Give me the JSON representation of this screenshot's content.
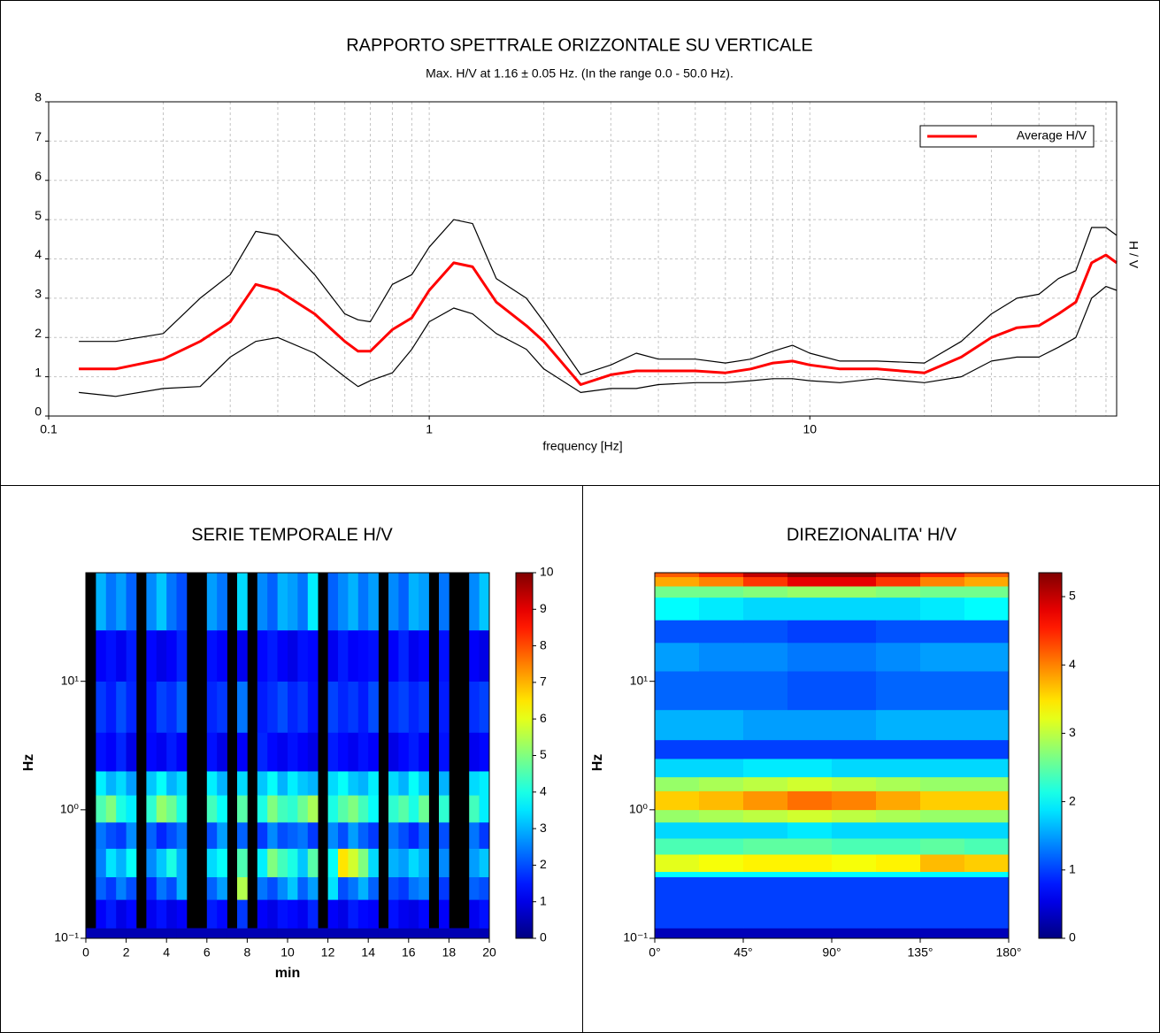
{
  "chart_data": [
    {
      "type": "line",
      "title": "RAPPORTO SPETTRALE ORIZZONTALE SU VERTICALE",
      "subtitle": "Max. H/V at 1.16 ± 0.05 Hz. (In the range 0.0 - 50.0 Hz).",
      "xlabel": "frequency [Hz]",
      "ylabel": "H / V",
      "xlog": true,
      "grid": true,
      "legend": "upper right",
      "xlim": [
        0.1,
        64
      ],
      "xticks": [
        0.1,
        1,
        10
      ],
      "xticks_minor": [
        0.2,
        0.3,
        0.4,
        0.5,
        0.6,
        0.7,
        0.8,
        0.9,
        2,
        3,
        4,
        5,
        6,
        7,
        8,
        9,
        20,
        30,
        40,
        50,
        60
      ],
      "ylim": [
        0,
        8
      ],
      "yticks": [
        0,
        1,
        2,
        3,
        4,
        5,
        6,
        7,
        8
      ],
      "x": [
        0.12,
        0.15,
        0.2,
        0.25,
        0.3,
        0.35,
        0.4,
        0.5,
        0.6,
        0.65,
        0.7,
        0.8,
        0.9,
        1,
        1.16,
        1.3,
        1.5,
        1.8,
        2,
        2.5,
        3,
        3.5,
        4,
        5,
        6,
        7,
        8,
        9,
        10,
        12,
        15,
        20,
        25,
        30,
        35,
        40,
        45,
        50,
        55,
        60,
        64
      ],
      "series": [
        {
          "color": "#000000",
          "values": [
            1.9,
            1.9,
            2.1,
            3.0,
            3.6,
            4.7,
            4.6,
            3.6,
            2.6,
            2.45,
            2.4,
            3.35,
            3.6,
            4.3,
            5.0,
            4.9,
            3.5,
            3.0,
            2.4,
            1.05,
            1.3,
            1.6,
            1.45,
            1.45,
            1.35,
            1.45,
            1.65,
            1.8,
            1.6,
            1.4,
            1.4,
            1.35,
            1.9,
            2.6,
            3.0,
            3.1,
            3.5,
            3.7,
            4.8,
            4.8,
            4.6
          ]
        },
        {
          "color": "#000000",
          "values": [
            0.6,
            0.5,
            0.7,
            0.75,
            1.5,
            1.9,
            2.0,
            1.6,
            1.0,
            0.75,
            0.9,
            1.1,
            1.7,
            2.4,
            2.75,
            2.6,
            2.1,
            1.7,
            1.2,
            0.6,
            0.7,
            0.7,
            0.8,
            0.85,
            0.85,
            0.9,
            0.95,
            0.95,
            0.9,
            0.85,
            0.95,
            0.85,
            1.0,
            1.4,
            1.5,
            1.5,
            1.75,
            2.0,
            3.0,
            3.3,
            3.2
          ]
        },
        {
          "name": "Average H/V",
          "color": "#ff0000",
          "values": [
            1.2,
            1.2,
            1.45,
            1.9,
            2.4,
            3.35,
            3.2,
            2.6,
            1.9,
            1.65,
            1.65,
            2.2,
            2.5,
            3.2,
            3.9,
            3.8,
            2.9,
            2.3,
            1.9,
            0.8,
            1.05,
            1.15,
            1.15,
            1.15,
            1.1,
            1.2,
            1.35,
            1.4,
            1.3,
            1.2,
            1.2,
            1.1,
            1.5,
            2.0,
            2.25,
            2.3,
            2.6,
            2.9,
            3.9,
            4.1,
            3.9
          ]
        }
      ]
    },
    {
      "type": "heatmap",
      "title": "SERIE TEMPORALE H/V",
      "xlabel": "min",
      "ylabel": "Hz",
      "ylog": true,
      "colormap": "jet",
      "xlim": [
        0,
        20
      ],
      "xticks": [
        0,
        2,
        4,
        6,
        8,
        10,
        12,
        14,
        16,
        18,
        20
      ],
      "ylim": [
        0.1,
        70
      ],
      "yticks": [
        {
          "value": 0.1,
          "label": "10⁻¹"
        },
        {
          "value": 1,
          "label": "10⁰"
        },
        {
          "value": 10,
          "label": "10¹"
        }
      ],
      "zlim": [
        0,
        10
      ],
      "zticks": [
        0,
        1,
        2,
        3,
        4,
        5,
        6,
        7,
        8,
        9,
        10
      ],
      "xbins": [
        0,
        0.5,
        1,
        1.5,
        2,
        2.5,
        3,
        3.5,
        4,
        4.5,
        5,
        5.5,
        6,
        6.5,
        7,
        7.5,
        8,
        8.5,
        9,
        9.5,
        10,
        10.5,
        11,
        11.5,
        12,
        12.5,
        13,
        13.5,
        14,
        14.5,
        15,
        15.5,
        16,
        16.5,
        17,
        17.5,
        18,
        18.5,
        19,
        19.5,
        20
      ],
      "ybins": [
        0.1,
        0.12,
        0.2,
        0.3,
        0.5,
        0.8,
        1.3,
        2,
        4,
        10,
        25,
        70
      ],
      "z": [
        [
          0.5,
          0.5,
          0.5,
          0.5,
          0.5,
          0.5,
          0.5,
          0.5,
          0.5,
          0.5,
          0.5,
          0.5,
          0.5,
          0.5,
          0.5,
          0.5,
          0.5,
          0.5,
          0.5,
          0.5,
          0.5,
          0.5,
          0.5,
          0.5,
          0.5,
          0.5,
          0.5,
          0.5,
          0.5,
          0.5,
          0.5,
          0.5,
          0.5,
          0.5,
          0.5,
          0.5,
          0.5,
          0.5,
          0.5,
          0.5
        ],
        [
          null,
          1.2,
          1.5,
          1.0,
          1.3,
          null,
          1.1,
          1.4,
          1.0,
          1.2,
          null,
          null,
          1.5,
          1.3,
          null,
          1.8,
          null,
          1.2,
          1.0,
          1.4,
          1.3,
          1.1,
          1.6,
          null,
          1.2,
          1.0,
          1.5,
          1.3,
          1.2,
          null,
          1.4,
          1.1,
          1.0,
          1.3,
          null,
          1.2,
          null,
          null,
          1.1,
          1.4
        ],
        [
          null,
          2.2,
          1.8,
          2.5,
          2.0,
          null,
          1.6,
          2.4,
          2.0,
          3.0,
          null,
          null,
          2.2,
          2.8,
          null,
          5.5,
          null,
          2.4,
          2.0,
          2.6,
          3.2,
          2.2,
          2.8,
          null,
          3.5,
          2.0,
          2.4,
          3.0,
          2.2,
          null,
          2.0,
          1.8,
          2.4,
          2.6,
          null,
          1.8,
          null,
          null,
          2.2,
          2.0
        ],
        [
          null,
          2.5,
          3.5,
          3.0,
          3.8,
          null,
          2.6,
          3.2,
          4.0,
          3.0,
          null,
          null,
          3.4,
          3.8,
          null,
          4.5,
          null,
          3.6,
          5.0,
          4.4,
          4.0,
          3.2,
          4.6,
          null,
          3.8,
          6.5,
          5.8,
          5.0,
          3.4,
          null,
          3.0,
          2.8,
          3.4,
          3.0,
          null,
          2.6,
          null,
          null,
          2.8,
          3.2
        ],
        [
          null,
          2.4,
          2.0,
          1.8,
          2.6,
          null,
          2.2,
          1.6,
          2.0,
          2.4,
          null,
          null,
          2.0,
          2.8,
          null,
          2.2,
          null,
          1.8,
          2.6,
          2.0,
          2.2,
          2.4,
          1.8,
          null,
          2.6,
          2.0,
          2.8,
          2.2,
          1.8,
          null,
          2.4,
          2.0,
          1.6,
          2.2,
          null,
          2.0,
          null,
          null,
          2.4,
          1.8
        ],
        [
          null,
          4.5,
          5.0,
          4.0,
          3.6,
          null,
          4.2,
          5.2,
          4.8,
          4.0,
          null,
          null,
          4.4,
          3.8,
          null,
          4.6,
          null,
          4.0,
          5.0,
          4.4,
          4.2,
          4.8,
          5.4,
          null,
          4.0,
          4.6,
          5.0,
          4.4,
          3.8,
          null,
          4.2,
          4.6,
          4.0,
          4.8,
          null,
          4.2,
          null,
          null,
          4.4,
          3.6
        ],
        [
          null,
          3.6,
          3.0,
          3.4,
          2.8,
          null,
          3.2,
          3.8,
          3.0,
          3.4,
          null,
          null,
          3.6,
          3.0,
          null,
          3.4,
          null,
          3.2,
          3.8,
          3.0,
          3.6,
          3.2,
          3.0,
          null,
          3.4,
          3.8,
          3.2,
          3.0,
          3.6,
          null,
          3.4,
          3.0,
          3.8,
          3.2,
          null,
          3.0,
          null,
          null,
          3.4,
          3.6
        ],
        [
          null,
          1.4,
          1.2,
          1.6,
          1.0,
          null,
          1.3,
          1.1,
          1.5,
          1.2,
          null,
          null,
          1.4,
          1.0,
          null,
          1.2,
          null,
          1.6,
          1.3,
          1.1,
          1.4,
          1.2,
          1.0,
          null,
          1.5,
          1.3,
          1.1,
          1.4,
          1.2,
          null,
          1.0,
          1.3,
          1.5,
          1.2,
          null,
          1.4,
          null,
          null,
          1.1,
          1.3
        ],
        [
          null,
          1.8,
          1.5,
          2.0,
          1.6,
          null,
          1.4,
          1.9,
          1.7,
          2.2,
          null,
          null,
          1.6,
          1.8,
          null,
          2.4,
          null,
          1.5,
          1.7,
          2.0,
          1.6,
          1.8,
          1.4,
          null,
          1.9,
          1.6,
          1.8,
          1.5,
          2.0,
          null,
          1.7,
          1.9,
          1.6,
          1.8,
          null,
          1.5,
          null,
          null,
          1.7,
          1.9
        ],
        [
          null,
          1.2,
          1.4,
          1.1,
          1.5,
          null,
          1.3,
          1.0,
          1.2,
          1.6,
          null,
          null,
          1.4,
          1.2,
          null,
          1.1,
          null,
          1.3,
          1.5,
          1.2,
          1.0,
          1.4,
          1.3,
          null,
          1.1,
          1.5,
          1.2,
          1.3,
          1.4,
          null,
          1.2,
          1.6,
          1.1,
          1.3,
          null,
          1.4,
          null,
          null,
          1.2,
          1.0
        ],
        [
          null,
          3.0,
          2.4,
          2.8,
          2.2,
          null,
          2.6,
          3.2,
          2.4,
          2.0,
          null,
          null,
          2.8,
          2.4,
          null,
          3.4,
          null,
          2.6,
          2.2,
          3.0,
          2.8,
          2.4,
          3.6,
          null,
          2.2,
          2.6,
          3.0,
          2.4,
          2.8,
          null,
          2.6,
          2.2,
          3.0,
          2.8,
          null,
          2.4,
          null,
          null,
          2.6,
          3.2
        ]
      ]
    },
    {
      "type": "heatmap",
      "title": "DIREZIONALITA' H/V",
      "ylabel": "Hz",
      "ylog": true,
      "colormap": "jet",
      "xlim": [
        0,
        180
      ],
      "xticks": [
        {
          "value": 0,
          "label": "0°"
        },
        {
          "value": 45,
          "label": "45°"
        },
        {
          "value": 90,
          "label": "90°"
        },
        {
          "value": 135,
          "label": "135°"
        },
        {
          "value": 180,
          "label": "180°"
        }
      ],
      "ylim": [
        0.1,
        70
      ],
      "yticks": [
        {
          "value": 0.1,
          "label": "10⁻¹"
        },
        {
          "value": 1,
          "label": "10⁰"
        },
        {
          "value": 10,
          "label": "10¹"
        }
      ],
      "zlim": [
        0,
        5.35
      ],
      "zticks": [
        0,
        1,
        2,
        3,
        4,
        5
      ],
      "xbins": [
        0,
        22.5,
        45,
        67.5,
        90,
        112.5,
        135,
        157.5,
        180
      ],
      "ybins": [
        0.1,
        0.12,
        0.3,
        0.33,
        0.45,
        0.6,
        0.8,
        1.0,
        1.4,
        1.8,
        2.5,
        3.5,
        6,
        12,
        20,
        30,
        45,
        55,
        65,
        70
      ],
      "z": [
        [
          0.3,
          0.3,
          0.3,
          0.3,
          0.3,
          0.3,
          0.3,
          0.3
        ],
        [
          1.0,
          1.0,
          1.0,
          1.0,
          1.0,
          1.0,
          1.0,
          1.0
        ],
        [
          2.0,
          2.0,
          2.0,
          2.0,
          2.0,
          2.0,
          2.0,
          2.0
        ],
        [
          3.2,
          3.3,
          3.4,
          3.4,
          3.3,
          3.4,
          3.7,
          3.6
        ],
        [
          2.4,
          2.4,
          2.5,
          2.5,
          2.4,
          2.4,
          2.5,
          2.4
        ],
        [
          1.8,
          1.8,
          1.8,
          1.9,
          1.8,
          1.8,
          1.8,
          1.8
        ],
        [
          2.8,
          2.9,
          3.0,
          3.1,
          3.0,
          2.9,
          2.8,
          2.8
        ],
        [
          3.6,
          3.7,
          3.9,
          4.1,
          4.0,
          3.8,
          3.6,
          3.6
        ],
        [
          2.8,
          2.9,
          3.0,
          3.1,
          3.0,
          2.9,
          2.8,
          2.8
        ],
        [
          1.8,
          1.8,
          1.9,
          1.9,
          1.8,
          1.8,
          1.8,
          1.8
        ],
        [
          1.0,
          1.0,
          1.0,
          1.0,
          1.0,
          1.0,
          1.0,
          1.0
        ],
        [
          1.6,
          1.6,
          1.5,
          1.5,
          1.5,
          1.6,
          1.6,
          1.6
        ],
        [
          1.2,
          1.2,
          1.2,
          1.1,
          1.1,
          1.2,
          1.2,
          1.2
        ],
        [
          1.5,
          1.4,
          1.4,
          1.3,
          1.3,
          1.4,
          1.5,
          1.5
        ],
        [
          1.1,
          1.1,
          1.1,
          1.0,
          1.0,
          1.1,
          1.1,
          1.1
        ],
        [
          2.0,
          1.9,
          1.8,
          1.8,
          1.8,
          1.8,
          1.9,
          2.0
        ],
        [
          2.6,
          2.6,
          2.7,
          2.8,
          2.8,
          2.7,
          2.6,
          2.6
        ],
        [
          3.8,
          4.0,
          4.4,
          4.8,
          4.8,
          4.4,
          4.0,
          3.8
        ],
        [
          4.2,
          4.5,
          5.0,
          5.3,
          5.3,
          5.0,
          4.5,
          4.2
        ]
      ]
    }
  ]
}
